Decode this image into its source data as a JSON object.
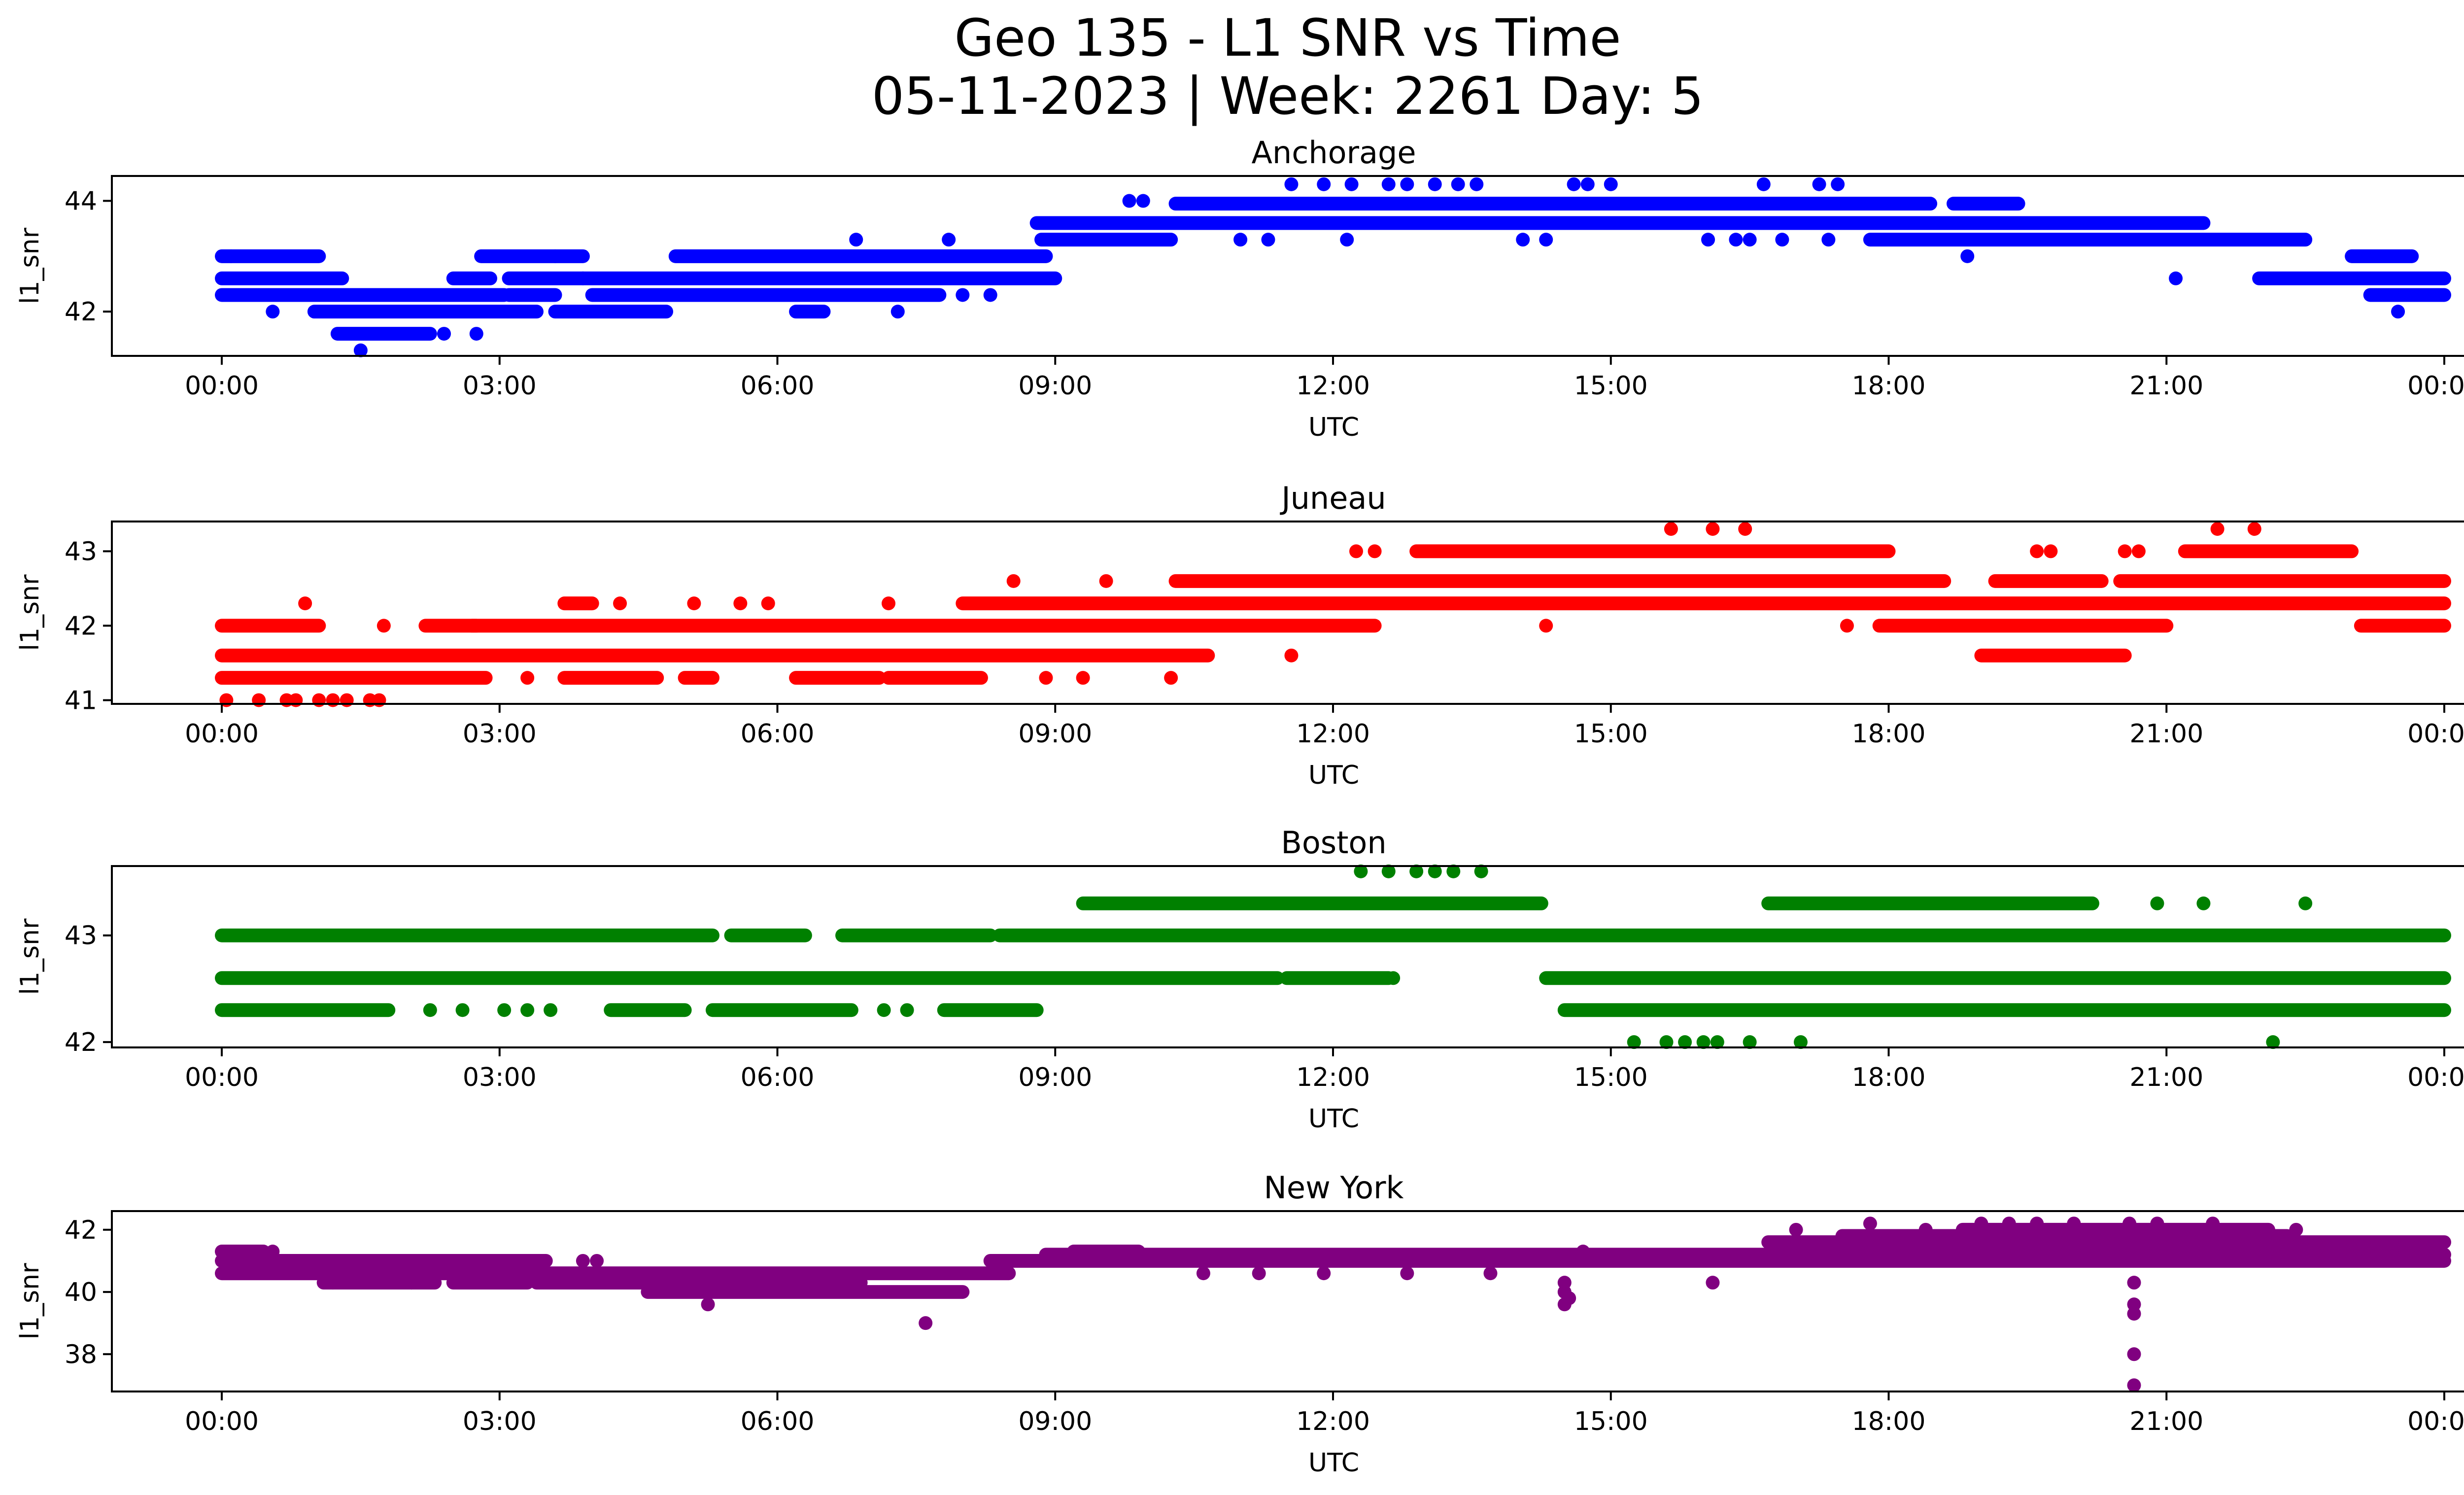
{
  "figure": {
    "title_line1": "Geo 135 - L1 SNR vs Time",
    "title_line2": "05-11-2023 | Week: 2261 Day: 5"
  },
  "chart_data": [
    {
      "type": "scatter",
      "title": "Anchorage",
      "xlabel": "UTC",
      "ylabel": "l1_snr",
      "color": "#0000ff",
      "xlim": [
        "00:00",
        "24:00"
      ],
      "ylim": [
        41.2,
        44.45
      ],
      "x_ticks": [
        "00:00",
        "03:00",
        "06:00",
        "09:00",
        "12:00",
        "15:00",
        "18:00",
        "21:00",
        "00:00"
      ],
      "y_ticks": [
        42,
        44
      ],
      "segments": [
        {
          "level": 43.0,
          "ranges": [
            [
              0.0,
              1.05
            ],
            [
              2.8,
              3.9
            ],
            [
              4.9,
              8.9
            ],
            [
              23.0,
              23.65
            ]
          ]
        },
        {
          "level": 42.6,
          "ranges": [
            [
              0.0,
              1.3
            ],
            [
              2.5,
              2.9
            ],
            [
              3.1,
              3.9
            ],
            [
              3.9,
              9.0
            ],
            [
              22.0,
              24.0
            ]
          ]
        },
        {
          "level": 42.3,
          "ranges": [
            [
              0.0,
              1.3
            ],
            [
              1.3,
              3.05
            ],
            [
              3.1,
              3.6
            ],
            [
              4.0,
              7.75
            ],
            [
              23.2,
              24.0
            ]
          ]
        },
        {
          "level": 42.0,
          "ranges": [
            [
              1.0,
              3.4
            ],
            [
              3.6,
              4.8
            ],
            [
              6.2,
              6.5
            ]
          ]
        },
        {
          "level": 43.3,
          "ranges": [
            [
              8.85,
              10.25
            ],
            [
              17.8,
              22.5
            ]
          ]
        },
        {
          "level": 43.6,
          "ranges": [
            [
              8.8,
              21.4
            ]
          ]
        },
        {
          "level": 43.95,
          "ranges": [
            [
              10.3,
              18.45
            ],
            [
              18.7,
              19.4
            ]
          ]
        },
        {
          "level": 41.6,
          "ranges": [
            [
              1.25,
              2.25
            ]
          ]
        }
      ],
      "points": [
        {
          "x": 0.1,
          "y": 43.0
        },
        {
          "x": 0.55,
          "y": 42.0
        },
        {
          "x": 1.5,
          "y": 41.3
        },
        {
          "x": 2.4,
          "y": 41.6
        },
        {
          "x": 2.75,
          "y": 41.6
        },
        {
          "x": 3.6,
          "y": 43.0
        },
        {
          "x": 6.85,
          "y": 43.3
        },
        {
          "x": 7.3,
          "y": 42.0
        },
        {
          "x": 7.85,
          "y": 43.3
        },
        {
          "x": 8.0,
          "y": 42.3
        },
        {
          "x": 8.3,
          "y": 42.3
        },
        {
          "x": 9.8,
          "y": 44.0
        },
        {
          "x": 9.95,
          "y": 44.0
        },
        {
          "x": 11.0,
          "y": 43.3
        },
        {
          "x": 11.3,
          "y": 43.3
        },
        {
          "x": 11.55,
          "y": 44.3
        },
        {
          "x": 11.9,
          "y": 44.3
        },
        {
          "x": 12.2,
          "y": 44.3
        },
        {
          "x": 12.6,
          "y": 44.3
        },
        {
          "x": 12.8,
          "y": 44.3
        },
        {
          "x": 13.1,
          "y": 44.3
        },
        {
          "x": 13.35,
          "y": 44.3
        },
        {
          "x": 13.55,
          "y": 44.3
        },
        {
          "x": 12.15,
          "y": 43.3
        },
        {
          "x": 14.6,
          "y": 44.3
        },
        {
          "x": 14.75,
          "y": 44.3
        },
        {
          "x": 15.0,
          "y": 44.3
        },
        {
          "x": 14.05,
          "y": 43.3
        },
        {
          "x": 14.3,
          "y": 43.3
        },
        {
          "x": 16.05,
          "y": 43.3
        },
        {
          "x": 16.35,
          "y": 43.3
        },
        {
          "x": 16.5,
          "y": 43.3
        },
        {
          "x": 16.85,
          "y": 43.3
        },
        {
          "x": 16.65,
          "y": 44.3
        },
        {
          "x": 17.25,
          "y": 44.3
        },
        {
          "x": 17.45,
          "y": 44.3
        },
        {
          "x": 17.35,
          "y": 43.3
        },
        {
          "x": 18.85,
          "y": 43.0
        },
        {
          "x": 21.1,
          "y": 42.6
        },
        {
          "x": 23.5,
          "y": 42.0
        }
      ]
    },
    {
      "type": "scatter",
      "title": "Juneau",
      "xlabel": "UTC",
      "ylabel": "l1_snr",
      "color": "#ff0000",
      "xlim": [
        "00:00",
        "24:00"
      ],
      "ylim": [
        40.95,
        43.4
      ],
      "x_ticks": [
        "00:00",
        "03:00",
        "06:00",
        "09:00",
        "12:00",
        "15:00",
        "18:00",
        "21:00",
        "00:00"
      ],
      "y_ticks": [
        41,
        42,
        43
      ],
      "segments": [
        {
          "level": 42.0,
          "ranges": [
            [
              0.0,
              1.05
            ],
            [
              2.2,
              2.75
            ],
            [
              2.7,
              12.45
            ],
            [
              17.9,
              21.0
            ],
            [
              23.1,
              24.0
            ]
          ]
        },
        {
          "level": 41.6,
          "ranges": [
            [
              0.0,
              10.65
            ],
            [
              19.0,
              20.55
            ]
          ]
        },
        {
          "level": 41.3,
          "ranges": [
            [
              0.0,
              2.85
            ],
            [
              3.7,
              4.7
            ],
            [
              5.0,
              5.3
            ],
            [
              6.2,
              7.1
            ],
            [
              7.2,
              8.2
            ]
          ]
        },
        {
          "level": 42.3,
          "ranges": [
            [
              3.7,
              4.0
            ],
            [
              8.0,
              24.0
            ]
          ]
        },
        {
          "level": 42.6,
          "ranges": [
            [
              10.3,
              18.6
            ],
            [
              19.15,
              20.3
            ],
            [
              20.5,
              24.0
            ]
          ]
        },
        {
          "level": 43.0,
          "ranges": [
            [
              12.9,
              18.0
            ],
            [
              21.2,
              23.0
            ]
          ]
        }
      ],
      "points": [
        {
          "x": 0.05,
          "y": 41.0
        },
        {
          "x": 0.4,
          "y": 41.0
        },
        {
          "x": 0.7,
          "y": 41.0
        },
        {
          "x": 0.8,
          "y": 41.0
        },
        {
          "x": 1.05,
          "y": 41.0
        },
        {
          "x": 1.2,
          "y": 41.0
        },
        {
          "x": 1.35,
          "y": 41.0
        },
        {
          "x": 1.6,
          "y": 41.0
        },
        {
          "x": 1.7,
          "y": 41.0
        },
        {
          "x": 0.9,
          "y": 42.3
        },
        {
          "x": 1.75,
          "y": 42.0
        },
        {
          "x": 3.3,
          "y": 41.3
        },
        {
          "x": 4.3,
          "y": 42.3
        },
        {
          "x": 5.1,
          "y": 42.3
        },
        {
          "x": 5.6,
          "y": 42.3
        },
        {
          "x": 5.9,
          "y": 42.3
        },
        {
          "x": 7.2,
          "y": 42.3
        },
        {
          "x": 8.55,
          "y": 42.6
        },
        {
          "x": 9.55,
          "y": 42.6
        },
        {
          "x": 8.9,
          "y": 41.3
        },
        {
          "x": 9.3,
          "y": 41.3
        },
        {
          "x": 10.25,
          "y": 41.3
        },
        {
          "x": 11.55,
          "y": 41.6
        },
        {
          "x": 12.25,
          "y": 43.0
        },
        {
          "x": 12.45,
          "y": 43.0
        },
        {
          "x": 14.3,
          "y": 42.0
        },
        {
          "x": 15.65,
          "y": 43.3
        },
        {
          "x": 16.1,
          "y": 43.3
        },
        {
          "x": 16.45,
          "y": 43.3
        },
        {
          "x": 17.55,
          "y": 42.0
        },
        {
          "x": 19.6,
          "y": 43.0
        },
        {
          "x": 19.75,
          "y": 43.0
        },
        {
          "x": 20.55,
          "y": 43.0
        },
        {
          "x": 20.7,
          "y": 43.0
        },
        {
          "x": 21.55,
          "y": 43.3
        },
        {
          "x": 21.95,
          "y": 43.3
        }
      ]
    },
    {
      "type": "scatter",
      "title": "Boston",
      "xlabel": "UTC",
      "ylabel": "l1_snr",
      "color": "#008000",
      "xlim": [
        "00:00",
        "24:00"
      ],
      "ylim": [
        41.95,
        43.65
      ],
      "x_ticks": [
        "00:00",
        "03:00",
        "06:00",
        "09:00",
        "12:00",
        "15:00",
        "18:00",
        "21:00",
        "00:00"
      ],
      "y_ticks": [
        42,
        43
      ],
      "segments": [
        {
          "level": 43.0,
          "ranges": [
            [
              0.0,
              5.3
            ],
            [
              5.5,
              6.3
            ],
            [
              6.7,
              8.3
            ],
            [
              8.4,
              24.0
            ]
          ]
        },
        {
          "level": 42.6,
          "ranges": [
            [
              0.0,
              11.4
            ],
            [
              11.5,
              12.6
            ],
            [
              14.3,
              24.0
            ]
          ]
        },
        {
          "level": 42.3,
          "ranges": [
            [
              0.0,
              1.8
            ],
            [
              4.2,
              5.0
            ],
            [
              5.3,
              6.8
            ],
            [
              7.8,
              8.8
            ],
            [
              14.5,
              24.0
            ]
          ]
        },
        {
          "level": 43.3,
          "ranges": [
            [
              9.3,
              14.25
            ],
            [
              16.7,
              20.2
            ]
          ]
        }
      ],
      "points": [
        {
          "x": 2.25,
          "y": 42.3
        },
        {
          "x": 2.6,
          "y": 42.3
        },
        {
          "x": 3.05,
          "y": 42.3
        },
        {
          "x": 3.3,
          "y": 42.3
        },
        {
          "x": 3.55,
          "y": 42.3
        },
        {
          "x": 7.15,
          "y": 42.3
        },
        {
          "x": 7.4,
          "y": 42.3
        },
        {
          "x": 12.65,
          "y": 42.6
        },
        {
          "x": 12.3,
          "y": 43.6
        },
        {
          "x": 12.6,
          "y": 43.6
        },
        {
          "x": 12.9,
          "y": 43.6
        },
        {
          "x": 13.1,
          "y": 43.6
        },
        {
          "x": 13.3,
          "y": 43.6
        },
        {
          "x": 13.6,
          "y": 43.6
        },
        {
          "x": 15.25,
          "y": 42.0
        },
        {
          "x": 15.6,
          "y": 42.0
        },
        {
          "x": 15.8,
          "y": 42.0
        },
        {
          "x": 16.0,
          "y": 42.0
        },
        {
          "x": 16.15,
          "y": 42.0
        },
        {
          "x": 16.5,
          "y": 42.0
        },
        {
          "x": 17.05,
          "y": 42.0
        },
        {
          "x": 22.15,
          "y": 42.0
        },
        {
          "x": 20.9,
          "y": 43.3
        },
        {
          "x": 21.4,
          "y": 43.3
        },
        {
          "x": 22.5,
          "y": 43.3
        }
      ]
    },
    {
      "type": "scatter",
      "title": "New York",
      "xlabel": "UTC",
      "ylabel": "l1_snr",
      "color": "#800080",
      "xlim": [
        "00:00",
        "24:00"
      ],
      "ylim": [
        36.8,
        42.6
      ],
      "x_ticks": [
        "00:00",
        "03:00",
        "06:00",
        "09:00",
        "12:00",
        "15:00",
        "18:00",
        "21:00",
        "00:00"
      ],
      "y_ticks": [
        38,
        40,
        42
      ],
      "segments": [
        {
          "level": 41.3,
          "ranges": [
            [
              0.0,
              0.45
            ],
            [
              9.2,
              9.9
            ]
          ]
        },
        {
          "level": 41.0,
          "ranges": [
            [
              0.0,
              3.5
            ],
            [
              8.3,
              24.0
            ]
          ]
        },
        {
          "level": 40.6,
          "ranges": [
            [
              0.0,
              8.5
            ]
          ]
        },
        {
          "level": 40.3,
          "ranges": [
            [
              1.1,
              2.3
            ],
            [
              2.5,
              3.3
            ],
            [
              3.4,
              6.9
            ]
          ]
        },
        {
          "level": 40.0,
          "ranges": [
            [
              4.6,
              8.0
            ]
          ]
        },
        {
          "level": 41.2,
          "ranges": [
            [
              8.9,
              24.0
            ]
          ]
        },
        {
          "level": 41.6,
          "ranges": [
            [
              16.7,
              24.0
            ]
          ]
        },
        {
          "level": 41.8,
          "ranges": [
            [
              17.5,
              22.3
            ]
          ]
        },
        {
          "level": 42.0,
          "ranges": [
            [
              18.8,
              22.1
            ]
          ]
        }
      ],
      "points": [
        {
          "x": 0.1,
          "y": 41.3
        },
        {
          "x": 0.55,
          "y": 41.3
        },
        {
          "x": 1.2,
          "y": 40.3
        },
        {
          "x": 2.05,
          "y": 40.3
        },
        {
          "x": 3.9,
          "y": 41.0
        },
        {
          "x": 4.05,
          "y": 41.0
        },
        {
          "x": 5.25,
          "y": 39.6
        },
        {
          "x": 7.6,
          "y": 39.0
        },
        {
          "x": 10.6,
          "y": 40.6
        },
        {
          "x": 11.2,
          "y": 40.6
        },
        {
          "x": 11.9,
          "y": 40.6
        },
        {
          "x": 12.8,
          "y": 40.6
        },
        {
          "x": 13.7,
          "y": 40.6
        },
        {
          "x": 14.5,
          "y": 40.3
        },
        {
          "x": 14.5,
          "y": 40.0
        },
        {
          "x": 14.5,
          "y": 39.6
        },
        {
          "x": 14.55,
          "y": 39.8
        },
        {
          "x": 14.7,
          "y": 41.3
        },
        {
          "x": 16.1,
          "y": 40.3
        },
        {
          "x": 17.0,
          "y": 42.0
        },
        {
          "x": 17.8,
          "y": 42.2
        },
        {
          "x": 18.4,
          "y": 42.0
        },
        {
          "x": 19.0,
          "y": 42.2
        },
        {
          "x": 19.3,
          "y": 42.2
        },
        {
          "x": 19.6,
          "y": 42.2
        },
        {
          "x": 20.0,
          "y": 42.2
        },
        {
          "x": 20.6,
          "y": 42.2
        },
        {
          "x": 20.9,
          "y": 42.2
        },
        {
          "x": 21.5,
          "y": 42.2
        },
        {
          "x": 20.65,
          "y": 40.3
        },
        {
          "x": 20.65,
          "y": 39.6
        },
        {
          "x": 20.65,
          "y": 39.3
        },
        {
          "x": 20.65,
          "y": 38.0
        },
        {
          "x": 20.65,
          "y": 37.0
        },
        {
          "x": 22.4,
          "y": 42.0
        }
      ]
    }
  ]
}
